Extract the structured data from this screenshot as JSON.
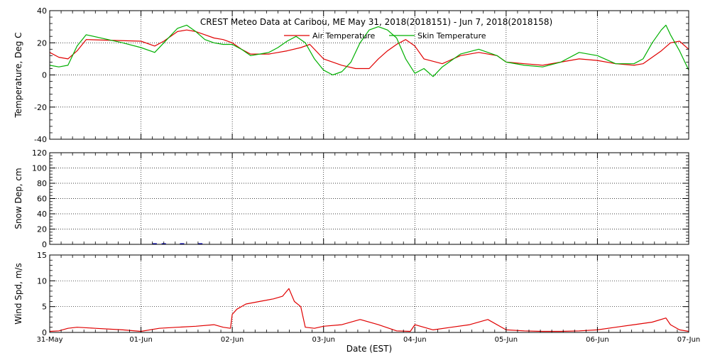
{
  "title": "CREST Meteo Data at Caribou, ME   May 31, 2018(2018151) - Jun  7, 2018(2018158)",
  "xlabel": "Date (EST)",
  "date_ticks": [
    "31-May",
    "01-Jun",
    "02-Jun",
    "03-Jun",
    "04-Jun",
    "05-Jun",
    "06-Jun",
    "07-Jun"
  ],
  "colors": {
    "air": "#e00000",
    "skin": "#00b000",
    "snow": "#0000c0",
    "wind": "#e00000",
    "axis": "#000000",
    "grid": "#000000"
  },
  "chart_data": [
    {
      "type": "line",
      "ylabel": "Temperature, Deg C",
      "ylim": [
        -40,
        40
      ],
      "ytick_labels": [
        "-40",
        "-20",
        "0",
        "20",
        "40"
      ],
      "grid": true,
      "legend_position": "top-center",
      "x_unit": "days since 31-May",
      "series": [
        {
          "name": "Air Temperature",
          "color": "#e00000",
          "x": [
            0.0,
            0.1,
            0.2,
            0.3,
            0.4,
            1.0,
            1.15,
            1.25,
            1.4,
            1.5,
            1.6,
            1.7,
            1.8,
            1.9,
            2.0,
            2.1,
            2.2,
            2.4,
            2.6,
            2.75,
            2.85,
            3.0,
            3.2,
            3.35,
            3.5,
            3.6,
            3.7,
            3.8,
            3.9,
            4.0,
            4.1,
            4.3,
            4.5,
            4.7,
            4.9,
            5.0,
            5.2,
            5.4,
            5.6,
            5.8,
            6.0,
            6.2,
            6.4,
            6.5,
            6.6,
            6.7,
            6.8,
            6.9,
            7.0
          ],
          "y": [
            14,
            11,
            10,
            15,
            22,
            21,
            18,
            21,
            27,
            28,
            27,
            25,
            23,
            22,
            20,
            16,
            13,
            13,
            15,
            17,
            19,
            10,
            6,
            4,
            4,
            10,
            15,
            19,
            22,
            18,
            10,
            7,
            12,
            14,
            12,
            8,
            7,
            6,
            8,
            10,
            9,
            7,
            6,
            7,
            11,
            15,
            20,
            21,
            16
          ]
        },
        {
          "name": "Skin Temperature",
          "color": "#00b000",
          "x": [
            0.0,
            0.1,
            0.2,
            0.3,
            0.4,
            0.8,
            1.0,
            1.15,
            1.25,
            1.4,
            1.5,
            1.6,
            1.7,
            1.8,
            1.9,
            2.0,
            2.1,
            2.2,
            2.3,
            2.4,
            2.5,
            2.6,
            2.7,
            2.8,
            2.9,
            3.0,
            3.1,
            3.2,
            3.3,
            3.4,
            3.5,
            3.6,
            3.7,
            3.8,
            3.9,
            4.0,
            4.1,
            4.2,
            4.3,
            4.5,
            4.7,
            4.9,
            5.0,
            5.2,
            5.4,
            5.6,
            5.8,
            6.0,
            6.2,
            6.4,
            6.5,
            6.6,
            6.7,
            6.75,
            6.8,
            6.9,
            7.0
          ],
          "y": [
            6,
            5,
            6,
            18,
            25,
            20,
            17,
            14,
            20,
            29,
            31,
            27,
            22,
            20,
            19,
            19,
            16,
            12,
            13,
            14,
            17,
            21,
            24,
            20,
            10,
            3,
            0,
            2,
            8,
            20,
            28,
            30,
            28,
            23,
            10,
            1,
            4,
            -1,
            5,
            13,
            16,
            12,
            8,
            6,
            5,
            8,
            14,
            12,
            7,
            7,
            10,
            20,
            28,
            31,
            25,
            15,
            3
          ]
        }
      ]
    },
    {
      "type": "bar",
      "ylabel": "Snow Dep, cm",
      "ylim": [
        0,
        120
      ],
      "ytick_labels": [
        "0",
        "20",
        "40",
        "60",
        "80",
        "100",
        "120"
      ],
      "grid": true,
      "series": [
        {
          "name": "",
          "color": "#0000c0",
          "x": [
            1.15,
            1.25,
            1.45,
            1.65
          ],
          "y": [
            0.5,
            0.5,
            0.5,
            0.5
          ]
        }
      ]
    },
    {
      "type": "line",
      "ylabel": "Wind Spd, m/s",
      "ylim": [
        0,
        15
      ],
      "ytick_labels": [
        "0",
        "5",
        "10",
        "15"
      ],
      "grid": true,
      "series": [
        {
          "name": "",
          "color": "#e00000",
          "x": [
            0.0,
            0.1,
            0.2,
            0.3,
            0.5,
            0.8,
            1.0,
            1.2,
            1.4,
            1.6,
            1.8,
            1.9,
            1.98,
            2.0,
            2.05,
            2.15,
            2.3,
            2.45,
            2.55,
            2.62,
            2.68,
            2.75,
            2.8,
            2.9,
            3.0,
            3.2,
            3.4,
            3.6,
            3.8,
            3.95,
            4.0,
            4.2,
            4.4,
            4.6,
            4.8,
            5.0,
            5.2,
            5.4,
            5.6,
            5.8,
            6.0,
            6.2,
            6.4,
            6.6,
            6.75,
            6.8,
            6.9,
            7.0
          ],
          "y": [
            0.2,
            0.3,
            0.8,
            1.0,
            0.8,
            0.5,
            0.2,
            0.8,
            1.0,
            1.2,
            1.5,
            1.0,
            0.8,
            3.5,
            4.5,
            5.5,
            6.0,
            6.5,
            7.0,
            8.5,
            6.0,
            5.0,
            1.0,
            0.8,
            1.2,
            1.5,
            2.5,
            1.5,
            0.3,
            0.2,
            1.5,
            0.5,
            1.0,
            1.5,
            2.5,
            0.5,
            0.3,
            0.2,
            0.2,
            0.3,
            0.5,
            1.0,
            1.5,
            2.0,
            2.8,
            1.5,
            0.5,
            0.2
          ]
        }
      ]
    }
  ]
}
